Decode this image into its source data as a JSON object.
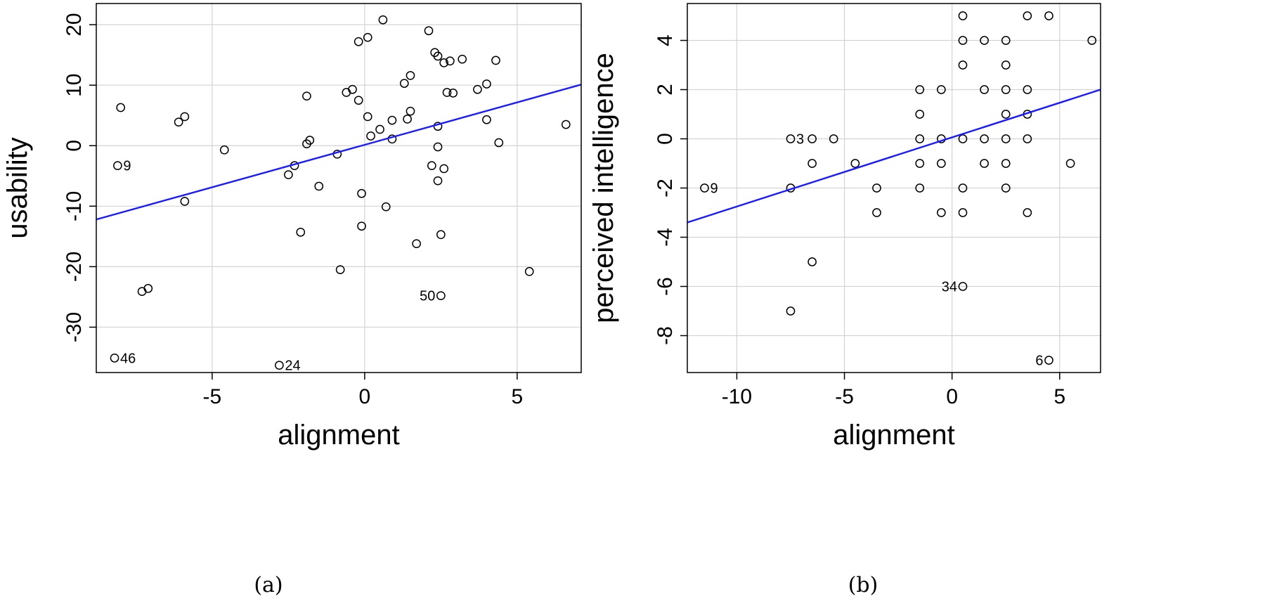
{
  "colors": {
    "regression": "#1a1aff",
    "grid": "#d3d3d3",
    "points": "#000000"
  },
  "chart_data": [
    {
      "type": "scatter",
      "caption": "(a)",
      "xlabel": "alignment",
      "ylabel": "usability",
      "xlim": [
        -8.8,
        7.1
      ],
      "ylim": [
        -37.5,
        23.5
      ],
      "xticks": [
        -5,
        0,
        5
      ],
      "yticks": [
        20,
        10,
        0,
        -10,
        -20,
        -30
      ],
      "grid": true,
      "regression": {
        "x": [
          -8.8,
          7.1
        ],
        "y": [
          -12.2,
          10.1
        ]
      },
      "labeled_points": [
        {
          "label": "9",
          "x": -8.1,
          "y": -3.3
        },
        {
          "label": "46",
          "x": -8.2,
          "y": -35.1
        },
        {
          "label": "24",
          "x": -2.8,
          "y": -36.3
        },
        {
          "label": "50",
          "x": 2.5,
          "y": -24.8
        }
      ],
      "points": [
        [
          -8.0,
          6.3
        ],
        [
          -6.1,
          3.9
        ],
        [
          -5.9,
          4.8
        ],
        [
          -5.9,
          -9.2
        ],
        [
          -7.3,
          -24.1
        ],
        [
          -7.1,
          -23.6
        ],
        [
          -4.6,
          -0.7
        ],
        [
          -2.5,
          -4.8
        ],
        [
          -2.3,
          -3.3
        ],
        [
          -2.1,
          -14.3
        ],
        [
          -1.9,
          8.2
        ],
        [
          -1.9,
          0.3
        ],
        [
          -1.8,
          0.9
        ],
        [
          -1.5,
          -6.7
        ],
        [
          -0.9,
          -1.4
        ],
        [
          -0.8,
          -20.5
        ],
        [
          -0.6,
          8.8
        ],
        [
          -0.4,
          9.3
        ],
        [
          -0.2,
          7.5
        ],
        [
          -0.2,
          17.2
        ],
        [
          -0.1,
          -7.9
        ],
        [
          -0.1,
          -13.3
        ],
        [
          0.1,
          17.9
        ],
        [
          0.1,
          4.8
        ],
        [
          0.2,
          1.6
        ],
        [
          0.5,
          2.7
        ],
        [
          0.6,
          20.8
        ],
        [
          0.7,
          -10.1
        ],
        [
          0.9,
          4.2
        ],
        [
          0.9,
          1.1
        ],
        [
          1.3,
          10.3
        ],
        [
          1.4,
          4.4
        ],
        [
          1.5,
          11.6
        ],
        [
          1.5,
          5.7
        ],
        [
          1.7,
          -16.2
        ],
        [
          2.1,
          19.0
        ],
        [
          2.2,
          -3.3
        ],
        [
          2.3,
          15.4
        ],
        [
          2.4,
          14.8
        ],
        [
          2.4,
          -0.2
        ],
        [
          2.4,
          3.2
        ],
        [
          2.4,
          -5.8
        ],
        [
          2.5,
          -14.7
        ],
        [
          2.6,
          -3.8
        ],
        [
          2.6,
          13.7
        ],
        [
          2.7,
          8.8
        ],
        [
          2.8,
          14.0
        ],
        [
          2.9,
          8.7
        ],
        [
          3.2,
          14.3
        ],
        [
          3.7,
          9.3
        ],
        [
          4.0,
          10.2
        ],
        [
          4.0,
          4.3
        ],
        [
          4.3,
          14.1
        ],
        [
          4.4,
          0.5
        ],
        [
          5.4,
          -20.8
        ],
        [
          6.6,
          3.5
        ]
      ]
    },
    {
      "type": "scatter",
      "caption": "(b)",
      "xlabel": "alignment",
      "ylabel": "perceived intelligence",
      "xlim": [
        -12.3,
        6.9
      ],
      "ylim": [
        -9.5,
        5.5
      ],
      "xticks": [
        -10,
        -5,
        0,
        5
      ],
      "yticks": [
        4,
        2,
        0,
        -2,
        -4,
        -6,
        -8
      ],
      "grid": true,
      "regression": {
        "x": [
          -12.3,
          6.9
        ],
        "y": [
          -3.4,
          2.0
        ]
      },
      "labeled_points": [
        {
          "label": "3",
          "x": -7.5,
          "y": 0
        },
        {
          "label": "9",
          "x": -11.5,
          "y": -2
        },
        {
          "label": "34",
          "x": 0.5,
          "y": -6
        },
        {
          "label": "6",
          "x": 4.5,
          "y": -9
        }
      ],
      "points": [
        [
          -6.5,
          0
        ],
        [
          -5.5,
          0
        ],
        [
          -6.5,
          -1
        ],
        [
          -4.5,
          -1
        ],
        [
          -7.5,
          -2
        ],
        [
          -6.5,
          -5
        ],
        [
          -7.5,
          -7
        ],
        [
          -3.5,
          -2
        ],
        [
          -3.5,
          -3
        ],
        [
          -1.5,
          2
        ],
        [
          -1.5,
          1
        ],
        [
          -1.5,
          0
        ],
        [
          -1.5,
          -1
        ],
        [
          -1.5,
          -2
        ],
        [
          -0.5,
          2
        ],
        [
          -0.5,
          0
        ],
        [
          -0.5,
          -1
        ],
        [
          -0.5,
          -3
        ],
        [
          0.5,
          5
        ],
        [
          0.5,
          4
        ],
        [
          0.5,
          3
        ],
        [
          0.5,
          0
        ],
        [
          0.5,
          -2
        ],
        [
          0.5,
          -3
        ],
        [
          1.5,
          4
        ],
        [
          1.5,
          2
        ],
        [
          1.5,
          0
        ],
        [
          1.5,
          -1
        ],
        [
          2.5,
          4
        ],
        [
          2.5,
          3
        ],
        [
          2.5,
          2
        ],
        [
          2.5,
          1
        ],
        [
          2.5,
          0
        ],
        [
          2.5,
          -1
        ],
        [
          2.5,
          -2
        ],
        [
          3.5,
          5
        ],
        [
          3.5,
          2
        ],
        [
          3.5,
          1
        ],
        [
          3.5,
          0
        ],
        [
          3.5,
          -3
        ],
        [
          4.5,
          5
        ],
        [
          5.5,
          -1
        ],
        [
          6.5,
          4
        ]
      ]
    }
  ]
}
